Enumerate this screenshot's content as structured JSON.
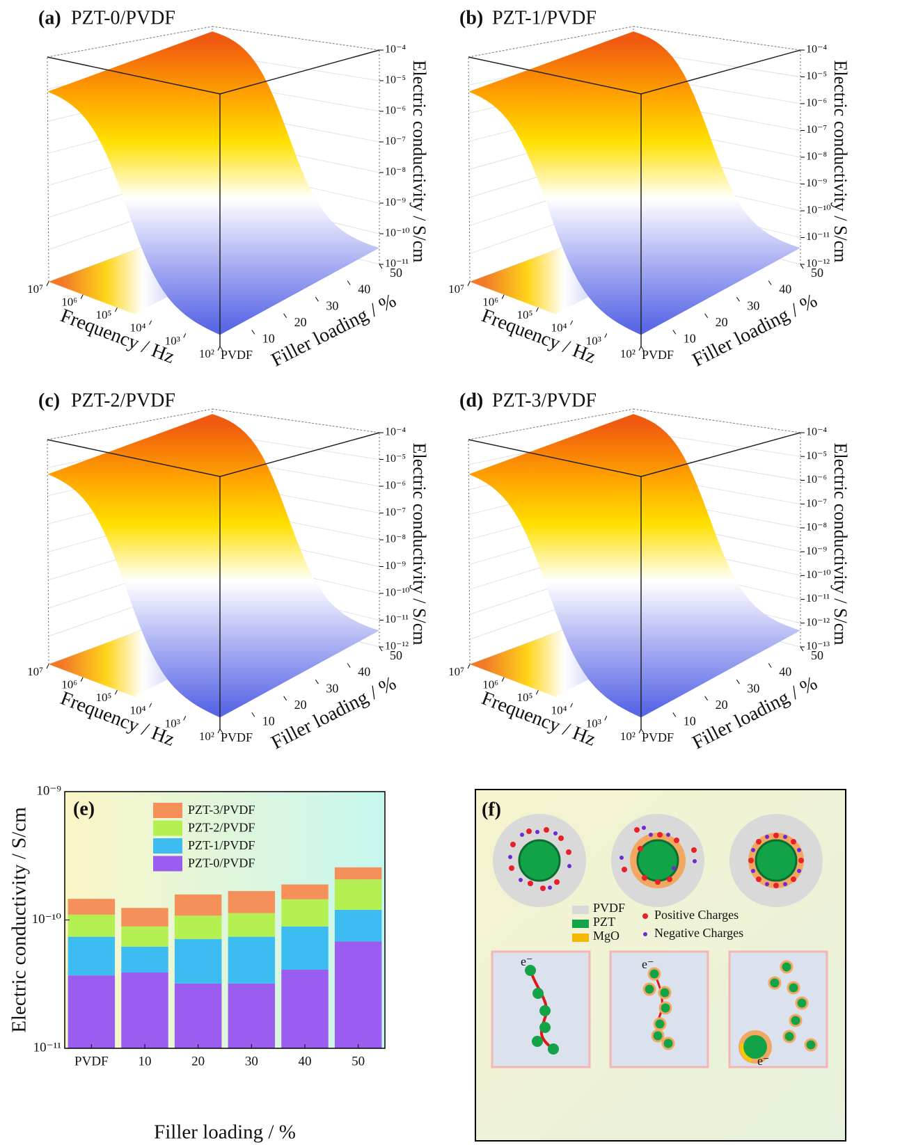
{
  "chart_data": [
    {
      "type": "surface3d",
      "label": "(a)",
      "title": "PZT-0/PVDF",
      "xlabel": "Frequency / Hz",
      "ylabel": "Filler loading / %",
      "zlabel": "Electric conductivity / S/cm",
      "xlim": [
        100,
        10000000
      ],
      "xticks": [
        {
          "value": 10000000,
          "label": "10⁷"
        },
        {
          "value": 1000000,
          "label": "10⁶"
        },
        {
          "value": 100000,
          "label": "10⁵"
        },
        {
          "value": 10000,
          "label": "10⁴"
        },
        {
          "value": 1000,
          "label": "10³"
        },
        {
          "value": 100,
          "label": "10²"
        }
      ],
      "ylim": [
        0,
        50
      ],
      "yticks": [
        {
          "value": 0,
          "label": "PVDF"
        },
        10,
        20,
        30,
        40,
        50
      ],
      "zlim": [
        1e-11,
        0.0001
      ],
      "zticks": [
        {
          "value": 0.0001,
          "label": "10⁻⁴"
        },
        {
          "value": 1e-05,
          "label": "10⁻⁵"
        },
        {
          "value": 1e-06,
          "label": "10⁻⁶"
        },
        {
          "value": 1e-07,
          "label": "10⁻⁷"
        },
        {
          "value": 1e-08,
          "label": "10⁻⁸"
        },
        {
          "value": 1e-09,
          "label": "10⁻⁹"
        },
        {
          "value": 1e-10,
          "label": "10⁻¹⁰"
        },
        {
          "value": 1e-11,
          "label": "10⁻¹¹"
        }
      ],
      "log_scale": true
    },
    {
      "type": "surface3d",
      "label": "(b)",
      "title": "PZT-1/PVDF",
      "xlabel": "Frequency / Hz",
      "ylabel": "Filler loading / %",
      "zlabel": "Electric conductivity / S/cm",
      "xlim": [
        100,
        10000000
      ],
      "xticks": [
        {
          "value": 10000000,
          "label": "10⁷"
        },
        {
          "value": 1000000,
          "label": "10⁶"
        },
        {
          "value": 100000,
          "label": "10⁵"
        },
        {
          "value": 10000,
          "label": "10⁴"
        },
        {
          "value": 1000,
          "label": "10³"
        },
        {
          "value": 100,
          "label": "10²"
        }
      ],
      "ylim": [
        0,
        50
      ],
      "yticks": [
        {
          "value": 0,
          "label": "PVDF"
        },
        10,
        20,
        30,
        40,
        50
      ],
      "zlim": [
        1e-12,
        0.0001
      ],
      "zticks": [
        {
          "value": 0.0001,
          "label": "10⁻⁴"
        },
        {
          "value": 1e-05,
          "label": "10⁻⁵"
        },
        {
          "value": 1e-06,
          "label": "10⁻⁶"
        },
        {
          "value": 1e-07,
          "label": "10⁻⁷"
        },
        {
          "value": 1e-08,
          "label": "10⁻⁸"
        },
        {
          "value": 1e-09,
          "label": "10⁻⁹"
        },
        {
          "value": 1e-10,
          "label": "10⁻¹⁰"
        },
        {
          "value": 1e-11,
          "label": "10⁻¹¹"
        },
        {
          "value": 1e-12,
          "label": "10⁻¹²"
        }
      ],
      "log_scale": true
    },
    {
      "type": "surface3d",
      "label": "(c)",
      "title": "PZT-2/PVDF",
      "xlabel": "Frequency / Hz",
      "ylabel": "Filler loading / %",
      "zlabel": "Electric conductivity / S/cm",
      "xlim": [
        100,
        10000000
      ],
      "xticks": [
        {
          "value": 10000000,
          "label": "10⁷"
        },
        {
          "value": 1000000,
          "label": "10⁶"
        },
        {
          "value": 100000,
          "label": "10⁵"
        },
        {
          "value": 10000,
          "label": "10⁴"
        },
        {
          "value": 1000,
          "label": "10³"
        },
        {
          "value": 100,
          "label": "10²"
        }
      ],
      "ylim": [
        0,
        50
      ],
      "yticks": [
        {
          "value": 0,
          "label": "PVDF"
        },
        10,
        20,
        30,
        40,
        50
      ],
      "zlim": [
        1e-12,
        0.0001
      ],
      "zticks": [
        {
          "value": 0.0001,
          "label": "10⁻⁴"
        },
        {
          "value": 1e-05,
          "label": "10⁻⁵"
        },
        {
          "value": 1e-06,
          "label": "10⁻⁶"
        },
        {
          "value": 1e-07,
          "label": "10⁻⁷"
        },
        {
          "value": 1e-08,
          "label": "10⁻⁸"
        },
        {
          "value": 1e-09,
          "label": "10⁻⁹"
        },
        {
          "value": 1e-10,
          "label": "10⁻¹⁰"
        },
        {
          "value": 1e-11,
          "label": "10⁻¹¹"
        },
        {
          "value": 1e-12,
          "label": "10⁻¹²"
        }
      ],
      "log_scale": true
    },
    {
      "type": "surface3d",
      "label": "(d)",
      "title": "PZT-3/PVDF",
      "xlabel": "Frequency / Hz",
      "ylabel": "Filler loading / %",
      "zlabel": "Electric conductivity / S/cm",
      "xlim": [
        100,
        10000000
      ],
      "xticks": [
        {
          "value": 10000000,
          "label": "10⁷"
        },
        {
          "value": 1000000,
          "label": "10⁶"
        },
        {
          "value": 100000,
          "label": "10⁵"
        },
        {
          "value": 10000,
          "label": "10⁴"
        },
        {
          "value": 1000,
          "label": "10³"
        },
        {
          "value": 100,
          "label": "10²"
        }
      ],
      "ylim": [
        0,
        50
      ],
      "yticks": [
        {
          "value": 0,
          "label": "PVDF"
        },
        10,
        20,
        30,
        40,
        50
      ],
      "zlim": [
        1e-13,
        0.0001
      ],
      "zticks": [
        {
          "value": 0.0001,
          "label": "10⁻⁴"
        },
        {
          "value": 1e-05,
          "label": "10⁻⁵"
        },
        {
          "value": 1e-06,
          "label": "10⁻⁶"
        },
        {
          "value": 1e-07,
          "label": "10⁻⁷"
        },
        {
          "value": 1e-08,
          "label": "10⁻⁸"
        },
        {
          "value": 1e-09,
          "label": "10⁻⁹"
        },
        {
          "value": 1e-10,
          "label": "10⁻¹⁰"
        },
        {
          "value": 1e-11,
          "label": "10⁻¹¹"
        },
        {
          "value": 1e-12,
          "label": "10⁻¹²"
        },
        {
          "value": 1e-13,
          "label": "10⁻¹³"
        }
      ],
      "log_scale": true
    },
    {
      "type": "bar",
      "stacked": true,
      "log_scale": true,
      "label": "(e)",
      "xlabel": "Filler loading / %",
      "ylabel": "Electric conductivity / S/cm",
      "legend": "upper left",
      "categories": [
        "PVDF",
        "10",
        "20",
        "30",
        "40",
        "50"
      ],
      "series": [
        {
          "name": "PZT-0/PVDF",
          "color": "#9b5cf0",
          "values": [
            3.7e-11,
            3.9e-11,
            3.2e-11,
            3.2e-11,
            4.1e-11,
            6.8e-11
          ]
        },
        {
          "name": "PZT-1/PVDF",
          "color": "#3cbcf0",
          "values": [
            3.7e-11,
            2.3e-11,
            3.9e-11,
            4.2e-11,
            4.8e-11,
            5.2e-11
          ]
        },
        {
          "name": "PZT-2/PVDF",
          "color": "#b4f052",
          "values": [
            3.6e-11,
            2.7e-11,
            3.7e-11,
            3.9e-11,
            5.6e-11,
            8.7e-11
          ]
        },
        {
          "name": "PZT-3/PVDF",
          "color": "#f5905a",
          "values": [
            3.6e-11,
            3.5e-11,
            5e-11,
            5.5e-11,
            4.4e-11,
            5e-11
          ]
        }
      ],
      "ylim": [
        1e-11,
        1e-09
      ],
      "yticks": [
        {
          "value": 1e-11,
          "label": "10⁻¹¹"
        },
        {
          "value": 1e-10,
          "label": "10⁻¹⁰"
        },
        {
          "value": 1e-09,
          "label": "10⁻⁹"
        }
      ]
    }
  ],
  "diagram": {
    "label": "(f)",
    "legend": [
      "PVDF",
      "PZT",
      "MgO"
    ],
    "charge_legend": [
      "Positive Charges",
      "Negative Charges"
    ],
    "electron_labels": [
      "e⁻",
      "e⁻",
      "e⁻"
    ]
  }
}
